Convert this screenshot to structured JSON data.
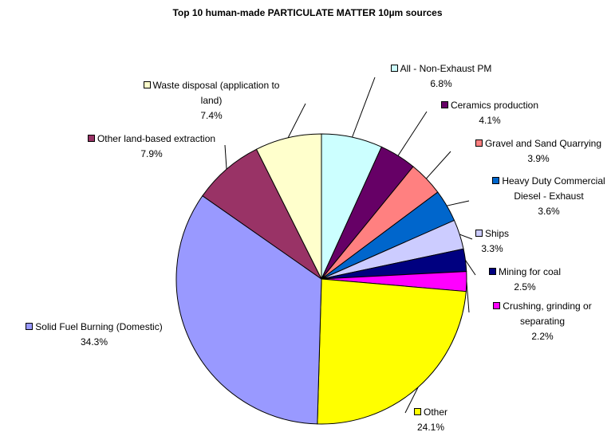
{
  "chart_data": {
    "type": "pie",
    "title": "Top 10 human-made PARTICULATE MATTER 10µm sources",
    "categories": [
      "All - Non-Exhaust PM",
      "Ceramics production",
      "Gravel and Sand Quarrying",
      "Heavy Duty Commercial Diesel - Exhaust",
      "Ships",
      "Mining for coal",
      "Crushing, grinding or separating",
      "Other",
      "Solid Fuel Burning (Domestic)",
      "Other land-based extraction",
      "Waste disposal (application to land)"
    ],
    "values": [
      6.8,
      4.1,
      3.9,
      3.6,
      3.3,
      2.5,
      2.2,
      24.1,
      34.3,
      7.9,
      7.4
    ],
    "value_labels": [
      "6.8%",
      "4.1%",
      "3.9%",
      "3.6%",
      "3.3%",
      "2.5%",
      "2.2%",
      "24.1%",
      "34.3%",
      "7.9%",
      "7.4%"
    ],
    "colors": [
      "#ccffff",
      "#660066",
      "#ff8080",
      "#0066cc",
      "#ccccff",
      "#000080",
      "#ff00ff",
      "#ffff00",
      "#9999ff",
      "#993366",
      "#ffffcc"
    ]
  }
}
